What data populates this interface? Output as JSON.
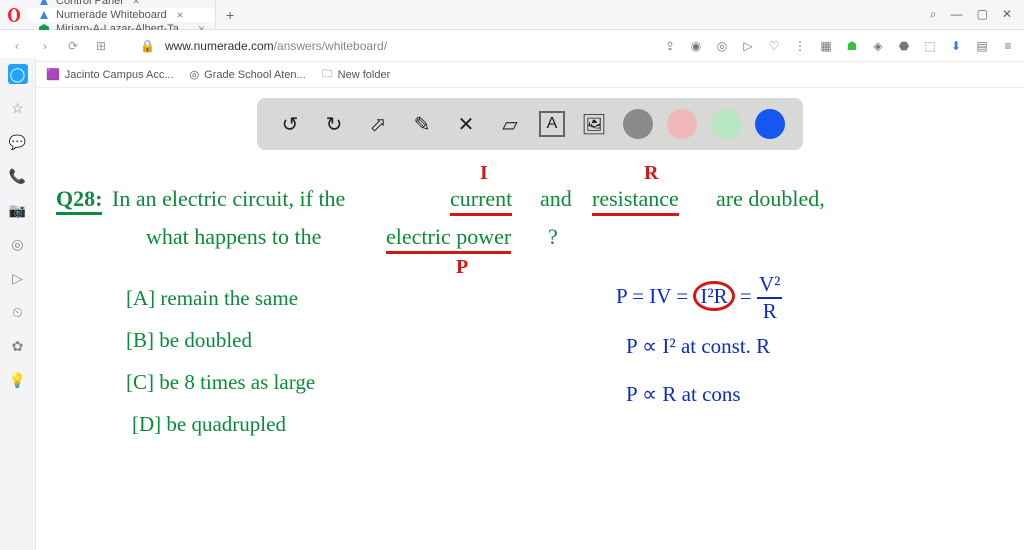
{
  "tabs": [
    {
      "title": "Control Panel",
      "active": false
    },
    {
      "title": "Numerade Whiteboard",
      "active": true
    },
    {
      "title": "Miriam-A-Lazar-Albert-Ta...",
      "active": false
    }
  ],
  "addressbar": {
    "domain": "www.numerade.com",
    "path": "/answers/whiteboard/"
  },
  "bookmarks": [
    {
      "label": "Jacinto Campus Acc...",
      "icon": "🟪"
    },
    {
      "label": "Grade School Aten...",
      "icon": "◎"
    },
    {
      "label": "New folder",
      "icon": "🗀"
    }
  ],
  "sidebar_icons": [
    "◯",
    "☆",
    "💬",
    "📞",
    "📷",
    "◎",
    "▷",
    "⏲",
    "✿",
    "💡"
  ],
  "toolbar": {
    "tools": [
      {
        "name": "undo",
        "glyph": "↺"
      },
      {
        "name": "redo",
        "glyph": "↻"
      },
      {
        "name": "pointer",
        "glyph": "⬀"
      },
      {
        "name": "pen",
        "glyph": "✎"
      },
      {
        "name": "tools",
        "glyph": "✕"
      },
      {
        "name": "eraser",
        "glyph": "▱"
      },
      {
        "name": "text",
        "glyph": "A"
      },
      {
        "name": "image",
        "glyph": "🖼"
      }
    ],
    "swatches": [
      "#8a8a8a",
      "#f0b8b8",
      "#b8e6c1",
      "#1557f0"
    ]
  },
  "handwriting": {
    "q_label": "Q28:",
    "q_line1_a": "In an electric circuit, if the",
    "q_line1_b": "current",
    "q_line1_c": "and",
    "q_line1_d": "resistance",
    "q_line1_e": "are doubled,",
    "q_line2_a": "what happens to the",
    "q_line2_b": "electric power",
    "q_line2_c": "?",
    "ann_I": "I",
    "ann_R": "R",
    "ann_P": "P",
    "opt_A": "[A] remain the same",
    "opt_B": "[B] be doubled",
    "opt_C": "[C] be 8 times as large",
    "opt_D": "[D] be quadrupled",
    "eq1_a": "P = IV =",
    "eq1_b": "I²R",
    "eq1_c": " = ",
    "eq1_frac_num": "V²",
    "eq1_frac_den": "R",
    "eq2": "P ∝ I²  at const. R",
    "eq3": "P ∝ R   at cons"
  }
}
